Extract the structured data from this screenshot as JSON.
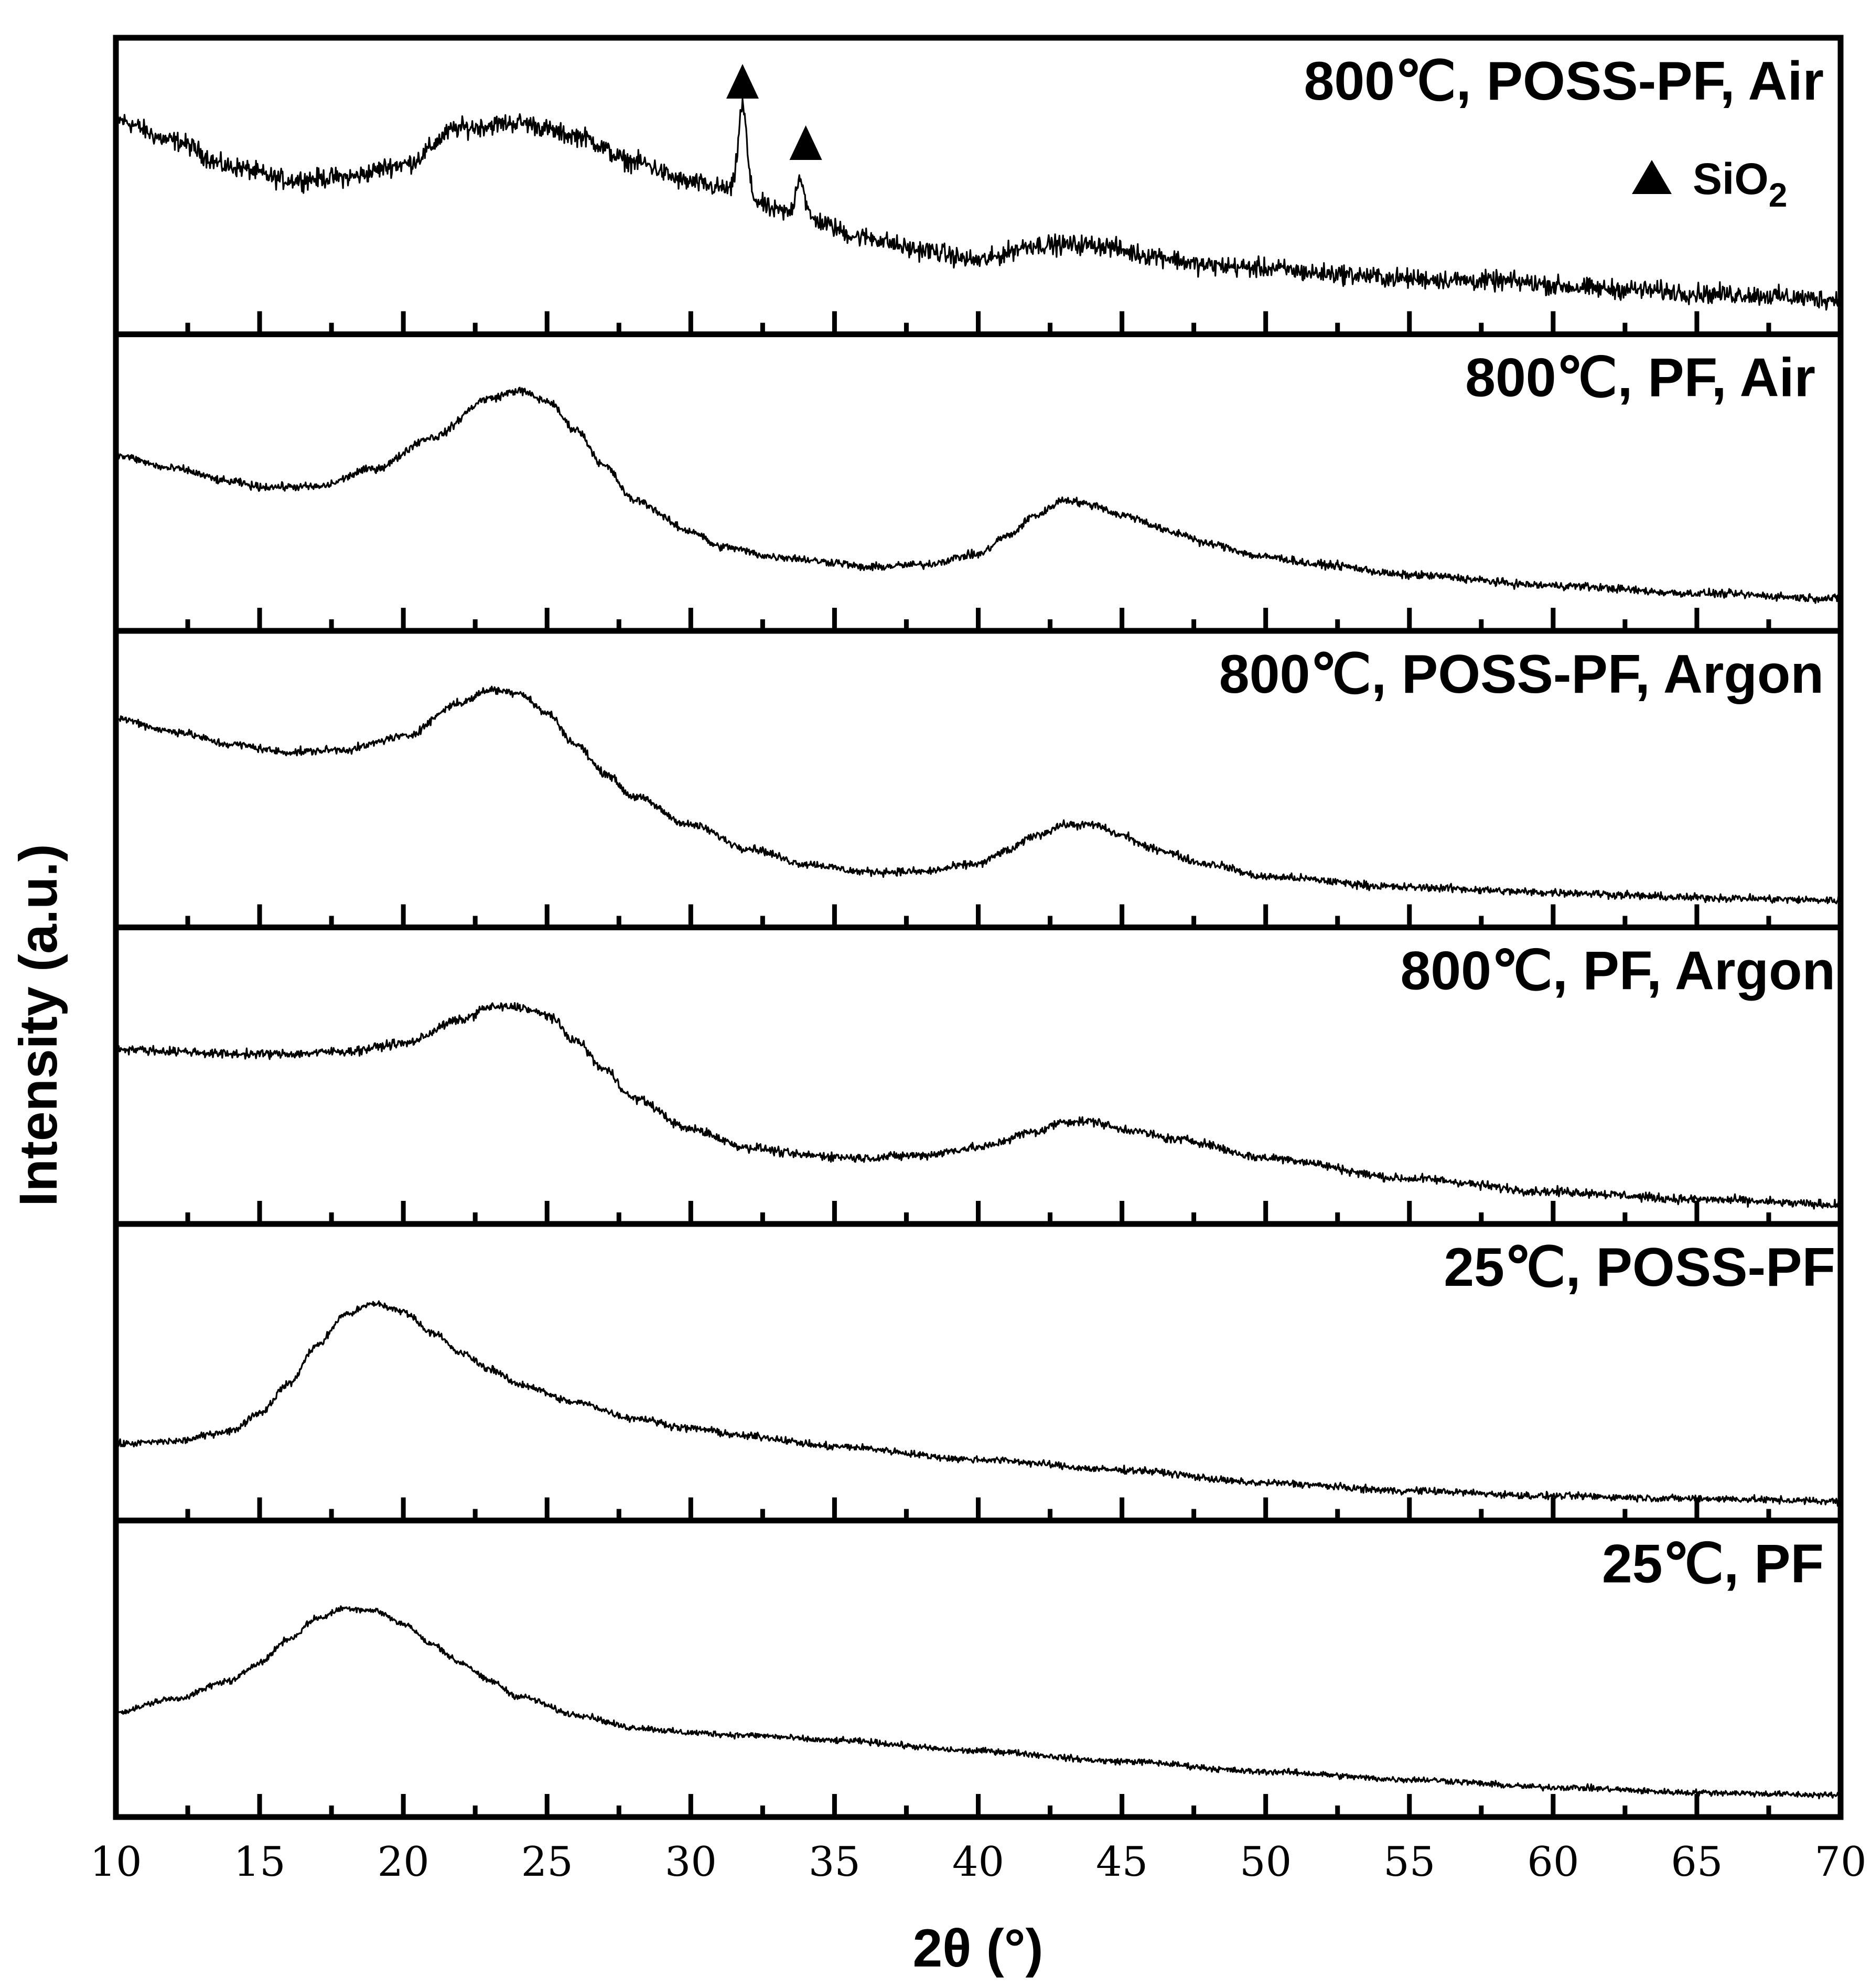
{
  "chart_data": {
    "type": "line",
    "title": "",
    "xlabel": "2θ (°)",
    "ylabel": "Intensity (a.u.)",
    "xlim": [
      10,
      70
    ],
    "x_ticks": [
      "10",
      "15",
      "20",
      "25",
      "30",
      "35",
      "40",
      "45",
      "50",
      "55",
      "60",
      "65",
      "70"
    ],
    "ylim": [
      0,
      1
    ],
    "layout": "six stacked panels, shared x axis",
    "series": [
      {
        "name": "800℃, POSS-PF, Air",
        "noise": 0.11,
        "points": [
          [
            10,
            0.78
          ],
          [
            12,
            0.7
          ],
          [
            14,
            0.6
          ],
          [
            16,
            0.55
          ],
          [
            18,
            0.56
          ],
          [
            20,
            0.61
          ],
          [
            22,
            0.75
          ],
          [
            24,
            0.77
          ],
          [
            26,
            0.72
          ],
          [
            28,
            0.62
          ],
          [
            30,
            0.54
          ],
          [
            31,
            0.52
          ],
          [
            32,
            0.48
          ],
          [
            33,
            0.43
          ],
          [
            34,
            0.4
          ],
          [
            36,
            0.33
          ],
          [
            38,
            0.28
          ],
          [
            40,
            0.24
          ],
          [
            42,
            0.3
          ],
          [
            44,
            0.3
          ],
          [
            46,
            0.26
          ],
          [
            48,
            0.22
          ],
          [
            50,
            0.21
          ],
          [
            52,
            0.19
          ],
          [
            55,
            0.17
          ],
          [
            58,
            0.16
          ],
          [
            62,
            0.13
          ],
          [
            66,
            0.11
          ],
          [
            70,
            0.09
          ]
        ],
        "peaks": [
          {
            "x": 31.8,
            "height": 0.35,
            "width": 0.15
          },
          {
            "x": 33.8,
            "height": 0.16,
            "width": 0.15
          }
        ]
      },
      {
        "name": "800℃, PF, Air",
        "noise": 0.045,
        "points": [
          [
            10,
            0.63
          ],
          [
            12,
            0.58
          ],
          [
            14,
            0.53
          ],
          [
            15,
            0.51
          ],
          [
            17,
            0.51
          ],
          [
            19,
            0.58
          ],
          [
            21,
            0.7
          ],
          [
            23,
            0.85
          ],
          [
            24,
            0.88
          ],
          [
            25,
            0.84
          ],
          [
            26,
            0.73
          ],
          [
            27,
            0.59
          ],
          [
            28,
            0.46
          ],
          [
            30,
            0.34
          ],
          [
            31,
            0.28
          ],
          [
            33,
            0.24
          ],
          [
            35,
            0.22
          ],
          [
            36,
            0.2
          ],
          [
            38,
            0.21
          ],
          [
            40,
            0.25
          ],
          [
            41,
            0.32
          ],
          [
            42,
            0.4
          ],
          [
            43,
            0.46
          ],
          [
            44,
            0.44
          ],
          [
            45,
            0.4
          ],
          [
            47,
            0.33
          ],
          [
            48,
            0.29
          ],
          [
            50,
            0.24
          ],
          [
            52,
            0.21
          ],
          [
            55,
            0.17
          ],
          [
            60,
            0.13
          ],
          [
            65,
            0.1
          ],
          [
            70,
            0.08
          ]
        ]
      },
      {
        "name": "800℃, POSS-PF, Argon",
        "noise": 0.045,
        "points": [
          [
            10,
            0.76
          ],
          [
            12,
            0.71
          ],
          [
            14,
            0.66
          ],
          [
            16,
            0.63
          ],
          [
            18,
            0.64
          ],
          [
            20,
            0.69
          ],
          [
            22,
            0.82
          ],
          [
            23,
            0.87
          ],
          [
            24,
            0.86
          ],
          [
            25,
            0.78
          ],
          [
            26,
            0.66
          ],
          [
            27,
            0.55
          ],
          [
            28,
            0.46
          ],
          [
            30,
            0.35
          ],
          [
            32,
            0.26
          ],
          [
            34,
            0.2
          ],
          [
            36,
            0.17
          ],
          [
            38,
            0.17
          ],
          [
            40,
            0.2
          ],
          [
            41,
            0.25
          ],
          [
            42,
            0.31
          ],
          [
            43,
            0.35
          ],
          [
            44,
            0.35
          ],
          [
            45,
            0.31
          ],
          [
            46,
            0.26
          ],
          [
            48,
            0.2
          ],
          [
            50,
            0.15
          ],
          [
            55,
            0.11
          ],
          [
            60,
            0.09
          ],
          [
            65,
            0.07
          ],
          [
            70,
            0.06
          ]
        ]
      },
      {
        "name": "800℃, PF, Argon",
        "noise": 0.05,
        "points": [
          [
            10,
            0.63
          ],
          [
            12,
            0.62
          ],
          [
            14,
            0.61
          ],
          [
            16,
            0.61
          ],
          [
            18,
            0.62
          ],
          [
            20,
            0.65
          ],
          [
            22,
            0.74
          ],
          [
            23,
            0.79
          ],
          [
            24,
            0.79
          ],
          [
            25,
            0.76
          ],
          [
            26,
            0.66
          ],
          [
            27,
            0.55
          ],
          [
            28,
            0.44
          ],
          [
            30,
            0.32
          ],
          [
            32,
            0.25
          ],
          [
            34,
            0.22
          ],
          [
            36,
            0.21
          ],
          [
            38,
            0.22
          ],
          [
            40,
            0.25
          ],
          [
            42,
            0.31
          ],
          [
            43,
            0.35
          ],
          [
            44,
            0.35
          ],
          [
            45,
            0.32
          ],
          [
            47,
            0.28
          ],
          [
            50,
            0.21
          ],
          [
            55,
            0.13
          ],
          [
            60,
            0.08
          ],
          [
            65,
            0.05
          ],
          [
            70,
            0.03
          ]
        ]
      },
      {
        "name": "25℃, POSS-PF",
        "noise": 0.04,
        "points": [
          [
            10,
            0.25
          ],
          [
            12,
            0.26
          ],
          [
            14,
            0.3
          ],
          [
            15,
            0.37
          ],
          [
            16,
            0.48
          ],
          [
            17,
            0.63
          ],
          [
            18,
            0.75
          ],
          [
            19,
            0.79
          ],
          [
            20,
            0.76
          ],
          [
            21,
            0.68
          ],
          [
            22,
            0.6
          ],
          [
            23,
            0.54
          ],
          [
            24,
            0.48
          ],
          [
            26,
            0.41
          ],
          [
            28,
            0.35
          ],
          [
            30,
            0.31
          ],
          [
            32,
            0.28
          ],
          [
            35,
            0.24
          ],
          [
            40,
            0.19
          ],
          [
            45,
            0.15
          ],
          [
            50,
            0.1
          ],
          [
            55,
            0.07
          ],
          [
            60,
            0.05
          ],
          [
            65,
            0.04
          ],
          [
            70,
            0.03
          ]
        ]
      },
      {
        "name": "25℃, PF",
        "noise": 0.035,
        "points": [
          [
            10,
            0.36
          ],
          [
            12,
            0.41
          ],
          [
            14,
            0.48
          ],
          [
            15,
            0.55
          ],
          [
            16,
            0.64
          ],
          [
            17,
            0.72
          ],
          [
            18,
            0.76
          ],
          [
            19,
            0.75
          ],
          [
            20,
            0.7
          ],
          [
            21,
            0.62
          ],
          [
            22,
            0.55
          ],
          [
            23,
            0.48
          ],
          [
            24,
            0.42
          ],
          [
            26,
            0.35
          ],
          [
            28,
            0.3
          ],
          [
            30,
            0.28
          ],
          [
            32,
            0.27
          ],
          [
            35,
            0.25
          ],
          [
            40,
            0.21
          ],
          [
            45,
            0.17
          ],
          [
            50,
            0.13
          ],
          [
            55,
            0.1
          ],
          [
            60,
            0.07
          ],
          [
            65,
            0.05
          ],
          [
            70,
            0.04
          ]
        ]
      }
    ],
    "annotations": {
      "markers": [
        {
          "series": "800℃, POSS-PF, Air",
          "x": 31.8
        },
        {
          "series": "800℃, POSS-PF, Air",
          "x": 34.0
        }
      ],
      "legend": {
        "symbol": "▲",
        "label": "SiO",
        "subscript": "2"
      }
    }
  }
}
